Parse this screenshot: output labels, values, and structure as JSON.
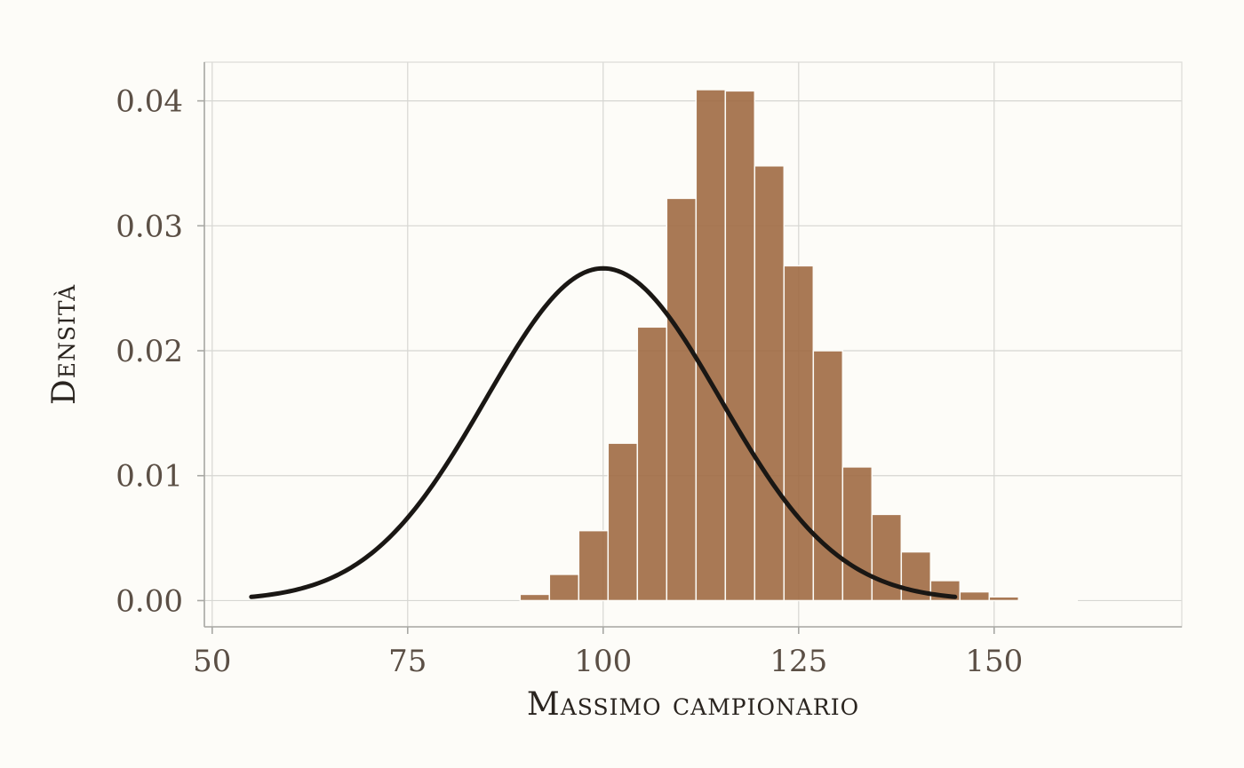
{
  "chart_data": {
    "type": "bar",
    "subtype": "histogram-with-density-curve",
    "title": "",
    "xlabel": "Massimo campionario",
    "ylabel": "Densità",
    "xlim": [
      49,
      174
    ],
    "ylim": [
      -0.0021,
      0.0431
    ],
    "x_ticks": [
      50,
      75,
      100,
      125,
      150
    ],
    "x_tick_labels": [
      "50",
      "75",
      "100",
      "125",
      "150"
    ],
    "y_ticks": [
      0.0,
      0.01,
      0.02,
      0.03,
      0.04
    ],
    "y_tick_labels": [
      "0.00",
      "0.01",
      "0.02",
      "0.03",
      "0.04"
    ],
    "grid": true,
    "legend": "none",
    "histogram": {
      "bin_width": 3.75,
      "bins": [
        {
          "x0": 89.375,
          "x1": 93.125,
          "density": 0.0005
        },
        {
          "x0": 93.125,
          "x1": 96.875,
          "density": 0.0021
        },
        {
          "x0": 96.875,
          "x1": 100.625,
          "density": 0.0056
        },
        {
          "x0": 100.625,
          "x1": 104.375,
          "density": 0.0126
        },
        {
          "x0": 104.375,
          "x1": 108.125,
          "density": 0.0219
        },
        {
          "x0": 108.125,
          "x1": 111.875,
          "density": 0.0322
        },
        {
          "x0": 111.875,
          "x1": 115.625,
          "density": 0.0409
        },
        {
          "x0": 115.625,
          "x1": 119.375,
          "density": 0.0408
        },
        {
          "x0": 119.375,
          "x1": 123.125,
          "density": 0.0348
        },
        {
          "x0": 123.125,
          "x1": 126.875,
          "density": 0.0268
        },
        {
          "x0": 126.875,
          "x1": 130.625,
          "density": 0.02
        },
        {
          "x0": 130.625,
          "x1": 134.375,
          "density": 0.0107
        },
        {
          "x0": 134.375,
          "x1": 138.125,
          "density": 0.0069
        },
        {
          "x0": 138.125,
          "x1": 141.875,
          "density": 0.0039
        },
        {
          "x0": 141.875,
          "x1": 145.625,
          "density": 0.0016
        },
        {
          "x0": 145.625,
          "x1": 149.375,
          "density": 0.0007
        },
        {
          "x0": 149.375,
          "x1": 153.125,
          "density": 0.0003
        },
        {
          "x0": 153.125,
          "x1": 156.875,
          "density": 0.0001
        },
        {
          "x0": 156.875,
          "x1": 160.625,
          "density": 5e-05
        }
      ],
      "color": "#a06a43"
    },
    "density_curve": {
      "distribution": "normal",
      "mean": 100,
      "sd": 15,
      "x_range": [
        55,
        145
      ],
      "color": "#1a1714"
    }
  }
}
